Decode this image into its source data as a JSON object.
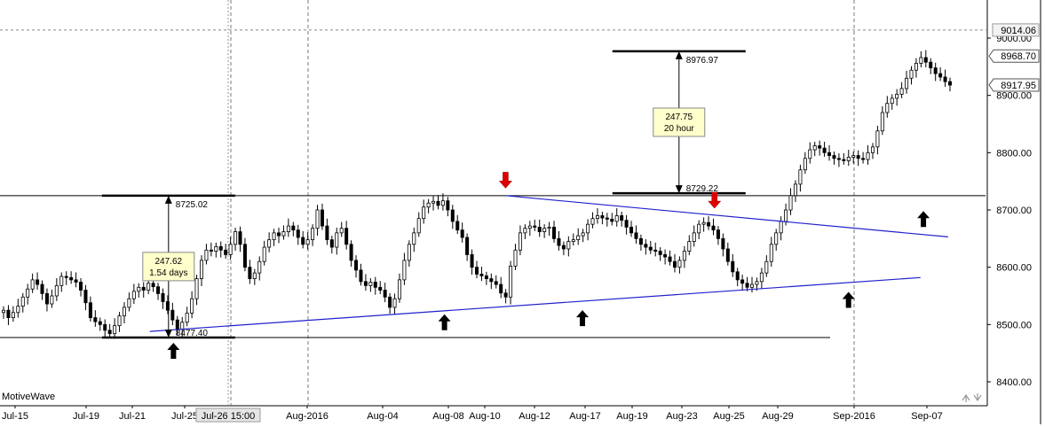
{
  "branding": {
    "watermark": "MotiveWave"
  },
  "chart_data": {
    "type": "candlestick",
    "x_axis": {
      "tick_labels": [
        "Jul-15",
        "Jul-19",
        "Jul-21",
        "Jul-25",
        "Aug-2016",
        "Aug-04",
        "Aug-08",
        "Aug-10",
        "Aug-12",
        "Aug-17",
        "Aug-19",
        "Aug-23",
        "Aug-25",
        "Aug-29",
        "Sep-2016",
        "Sep-07"
      ],
      "crosshair_label": "Jul-26 15:00"
    },
    "y_axis": {
      "ticks": [
        8400,
        8500,
        8600,
        8700,
        8800,
        8900,
        9000
      ],
      "tick_labels": [
        "8400.00",
        "8500.00",
        "8600.00",
        "8700.00",
        "8800.00",
        "8900.00",
        "9000.00"
      ],
      "range": [
        8348,
        9052
      ],
      "price_tags": [
        {
          "label": "9014.06",
          "value": 9014.06,
          "style": "crosshair"
        },
        {
          "label": "8968.70",
          "value": 8968.7,
          "style": "box"
        },
        {
          "label": "8917.95",
          "value": 8917.95,
          "style": "box"
        }
      ]
    },
    "horizontal_lines": [
      8725.02,
      8477.4
    ],
    "trendlines": [
      {
        "from": [
          0.152,
          8488
        ],
        "to": [
          0.934,
          8582
        ]
      },
      {
        "from": [
          0.513,
          8725
        ],
        "to": [
          0.962,
          8653
        ]
      }
    ],
    "measures": [
      {
        "top_label": "8725.02",
        "bottom_label": "8477.40",
        "top": 8725.02,
        "bottom": 8477.4,
        "box_lines": [
          "247.62",
          "1.54 days"
        ],
        "x": 0.171
      },
      {
        "top_label": "8976.97",
        "bottom_label": "8729.22",
        "top": 8976.97,
        "bottom": 8729.22,
        "box_lines": [
          "247.75",
          "20 hour"
        ],
        "x": 0.689
      }
    ],
    "markers": [
      {
        "type": "up",
        "x": 0.176,
        "price": 8468
      },
      {
        "type": "up",
        "x": 0.451,
        "price": 8518
      },
      {
        "type": "up",
        "x": 0.591,
        "price": 8525
      },
      {
        "type": "up",
        "x": 0.861,
        "price": 8557
      },
      {
        "type": "up",
        "x": 0.937,
        "price": 8698
      },
      {
        "type": "down",
        "x": 0.513,
        "price": 8738
      },
      {
        "type": "down",
        "x": 0.725,
        "price": 8703
      }
    ],
    "series_close": [
      8525,
      8512,
      8521,
      8532,
      8548,
      8562,
      8578,
      8570,
      8554,
      8536,
      8550,
      8568,
      8584,
      8582,
      8578,
      8574,
      8560,
      8538,
      8512,
      8505,
      8500,
      8490,
      8484,
      8498,
      8515,
      8530,
      8545,
      8558,
      8565,
      8560,
      8572,
      8566,
      8554,
      8540,
      8525,
      8508,
      8492,
      8504,
      8520,
      8545,
      8580,
      8612,
      8630,
      8628,
      8636,
      8630,
      8622,
      8640,
      8662,
      8640,
      8600,
      8580,
      8590,
      8610,
      8635,
      8648,
      8660,
      8655,
      8662,
      8672,
      8665,
      8652,
      8640,
      8648,
      8668,
      8700,
      8672,
      8648,
      8635,
      8660,
      8668,
      8640,
      8612,
      8595,
      8575,
      8568,
      8574,
      8565,
      8560,
      8548,
      8530,
      8545,
      8578,
      8612,
      8640,
      8660,
      8685,
      8705,
      8712,
      8715,
      8708,
      8716,
      8700,
      8680,
      8665,
      8652,
      8622,
      8600,
      8588,
      8585,
      8580,
      8575,
      8570,
      8555,
      8548,
      8602,
      8630,
      8660,
      8668,
      8672,
      8670,
      8662,
      8668,
      8670,
      8650,
      8638,
      8632,
      8645,
      8648,
      8655,
      8660,
      8675,
      8685,
      8690,
      8686,
      8684,
      8680,
      8690,
      8682,
      8670,
      8660,
      8650,
      8640,
      8635,
      8630,
      8628,
      8622,
      8618,
      8610,
      8600,
      8612,
      8628,
      8645,
      8660,
      8675,
      8678,
      8672,
      8665,
      8650,
      8632,
      8610,
      8592,
      8578,
      8572,
      8565,
      8570,
      8575,
      8590,
      8610,
      8640,
      8660,
      8680,
      8700,
      8725,
      8745,
      8770,
      8790,
      8805,
      8812,
      8808,
      8800,
      8795,
      8790,
      8788,
      8786,
      8792,
      8795,
      8790,
      8788,
      8800,
      8810,
      8838,
      8870,
      8886,
      8895,
      8902,
      8912,
      8930,
      8944,
      8956,
      8966,
      8958,
      8948,
      8938,
      8932,
      8924,
      8918
    ]
  }
}
